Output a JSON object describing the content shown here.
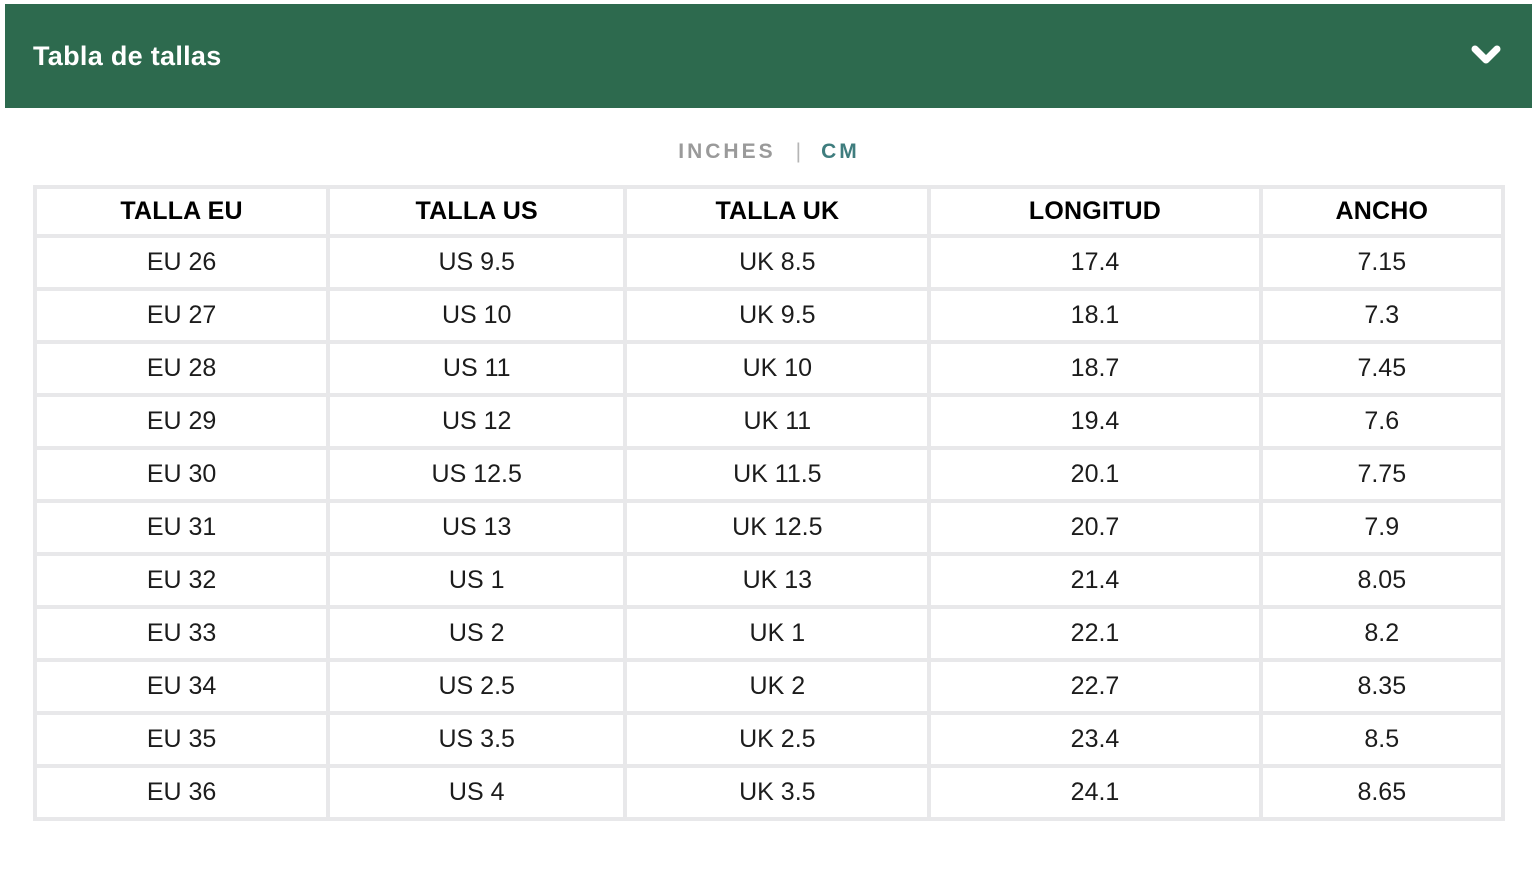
{
  "colors": {
    "header_bg": "#2d6a4e",
    "header_text": "#ffffff",
    "unit_inactive": "#9a9a9a",
    "unit_divider": "#b5b5b5",
    "unit_active": "#3f7d7e",
    "table_border": "#e8e8ea",
    "cell_text": "#1c1c1c"
  },
  "header": {
    "title": "Tabla de tallas",
    "chevron_icon": "chevron-down"
  },
  "unit_toggle": {
    "inches_label": "INCHES",
    "separator": "|",
    "cm_label": "CM",
    "selected": "CM"
  },
  "table": {
    "columns": [
      "TALLA EU",
      "TALLA US",
      "TALLA UK",
      "LONGITUD",
      "ANCHO"
    ],
    "rows": [
      [
        "EU 26",
        "US 9.5",
        "UK 8.5",
        "17.4",
        "7.15"
      ],
      [
        "EU 27",
        "US 10",
        "UK 9.5",
        "18.1",
        "7.3"
      ],
      [
        "EU 28",
        "US 11",
        "UK 10",
        "18.7",
        "7.45"
      ],
      [
        "EU 29",
        "US 12",
        "UK 11",
        "19.4",
        "7.6"
      ],
      [
        "EU 30",
        "US 12.5",
        "UK 11.5",
        "20.1",
        "7.75"
      ],
      [
        "EU 31",
        "US 13",
        "UK 12.5",
        "20.7",
        "7.9"
      ],
      [
        "EU 32",
        "US 1",
        "UK 13",
        "21.4",
        "8.05"
      ],
      [
        "EU 33",
        "US 2",
        "UK 1",
        "22.1",
        "8.2"
      ],
      [
        "EU 34",
        "US 2.5",
        "UK 2",
        "22.7",
        "8.35"
      ],
      [
        "EU 35",
        "US 3.5",
        "UK 2.5",
        "23.4",
        "8.5"
      ],
      [
        "EU 36",
        "US 4",
        "UK 3.5",
        "24.1",
        "8.65"
      ]
    ]
  }
}
